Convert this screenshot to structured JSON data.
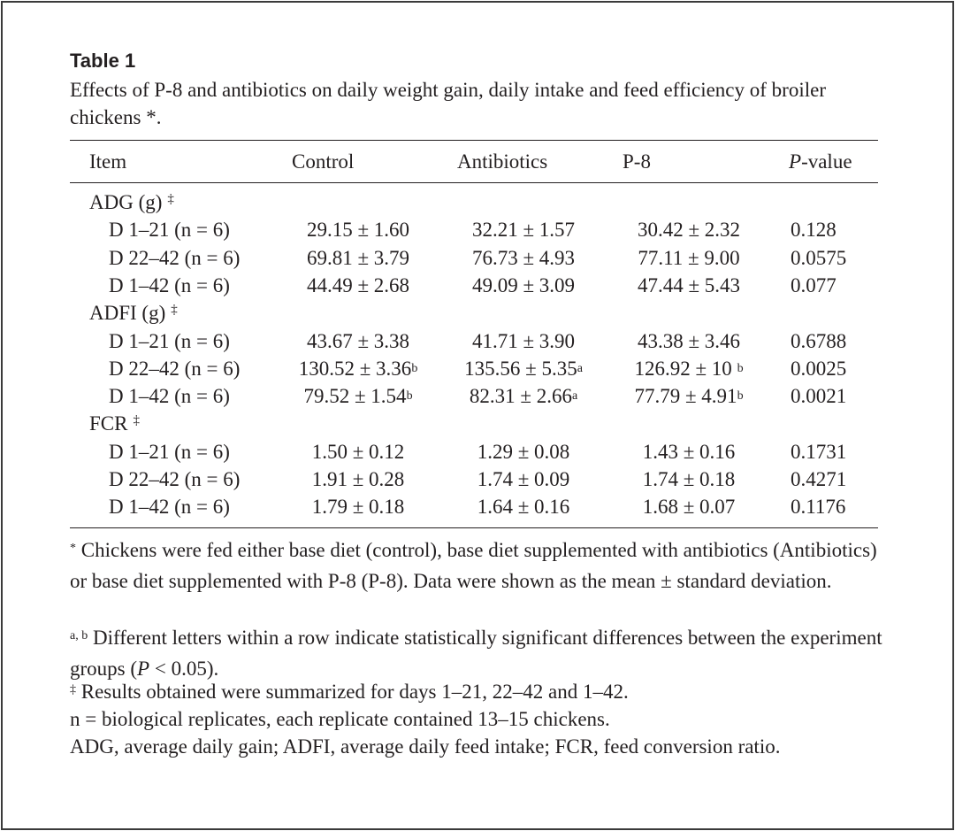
{
  "table": {
    "label": "Table 1",
    "caption": "Effects of P-8 and antibiotics on daily weight gain, daily intake and feed efficiency of broiler chickens *.",
    "headers": {
      "item": "Item",
      "control": "Control",
      "antibiotics": "Antibiotics",
      "p8": "P-8",
      "pvalue_italic": "P",
      "pvalue_rest": "-value"
    },
    "groups": [
      {
        "label": "ADG (g)",
        "mark": "‡",
        "rows": [
          {
            "item": "D 1–21 (n = 6)",
            "control": "29.15 ± 1.60",
            "control_sup": "",
            "antibiotics": "32.21 ± 1.57",
            "antibiotics_sup": "",
            "p8": "30.42 ± 2.32",
            "p8_sup": "",
            "pvalue": "0.128"
          },
          {
            "item": "D 22–42 (n = 6)",
            "control": "69.81 ± 3.79",
            "control_sup": "",
            "antibiotics": "76.73 ± 4.93",
            "antibiotics_sup": "",
            "p8": "77.11 ± 9.00",
            "p8_sup": "",
            "pvalue": "0.0575"
          },
          {
            "item": "D 1–42 (n = 6)",
            "control": "44.49 ± 2.68",
            "control_sup": "",
            "antibiotics": "49.09 ± 3.09",
            "antibiotics_sup": "",
            "p8": "47.44 ± 5.43",
            "p8_sup": "",
            "pvalue": "0.077"
          }
        ]
      },
      {
        "label": "ADFI (g)",
        "mark": "‡",
        "rows": [
          {
            "item": "D 1–21 (n = 6)",
            "control": "43.67 ± 3.38",
            "control_sup": "",
            "antibiotics": "41.71 ± 3.90",
            "antibiotics_sup": "",
            "p8": "43.38 ± 3.46",
            "p8_sup": "",
            "pvalue": "0.6788"
          },
          {
            "item": "D 22–42 (n = 6)",
            "control": "130.52 ± 3.36",
            "control_sup": "b",
            "antibiotics": "135.56 ± 5.35",
            "antibiotics_sup": "a",
            "p8": "126.92 ± 10 ",
            "p8_sup": "b",
            "pvalue": "0.0025"
          },
          {
            "item": "D 1–42 (n = 6)",
            "control": "79.52 ± 1.54",
            "control_sup": "b",
            "antibiotics": "82.31 ± 2.66",
            "antibiotics_sup": "a",
            "p8": "77.79 ± 4.91",
            "p8_sup": "b",
            "pvalue": "0.0021"
          }
        ]
      },
      {
        "label": "FCR",
        "mark": "‡",
        "rows": [
          {
            "item": "D 1–21 (n = 6)",
            "control": "1.50 ± 0.12",
            "control_sup": "",
            "antibiotics": "1.29 ± 0.08",
            "antibiotics_sup": "",
            "p8": "1.43 ± 0.16",
            "p8_sup": "",
            "pvalue": "0.1731"
          },
          {
            "item": "D 22–42 (n = 6)",
            "control": "1.91 ± 0.28",
            "control_sup": "",
            "antibiotics": "1.74 ± 0.09",
            "antibiotics_sup": "",
            "p8": "1.74 ± 0.18",
            "p8_sup": "",
            "pvalue": "0.4271"
          },
          {
            "item": "D 1–42 (n = 6)",
            "control": "1.79 ± 0.18",
            "control_sup": "",
            "antibiotics": "1.64 ± 0.16",
            "antibiotics_sup": "",
            "p8": "1.68 ± 0.07",
            "p8_sup": "",
            "pvalue": "0.1176"
          }
        ]
      }
    ],
    "footnotes": {
      "star_mark": "*",
      "star_text": " Chickens were fed either base diet (control), base diet supplemented with antibiotics (Antibiotics) or base diet supplemented with P-8 (P-8). Data were shown as the mean ± standard deviation.",
      "ab_mark": "a, b",
      "ab_text": " Different letters within a row indicate statistically significant differences between the experiment groups (",
      "ab_p": "P",
      "ab_end": " < 0.05).",
      "dagger_mark": "‡",
      "dagger_text": " Results obtained were summarized for days 1–21, 22–42 and 1–42.",
      "n_text": "n = biological replicates, each replicate contained 13–15 chickens.",
      "abbr_text": "ADG, average daily gain; ADFI, average daily feed intake; FCR, feed conversion ratio."
    }
  }
}
